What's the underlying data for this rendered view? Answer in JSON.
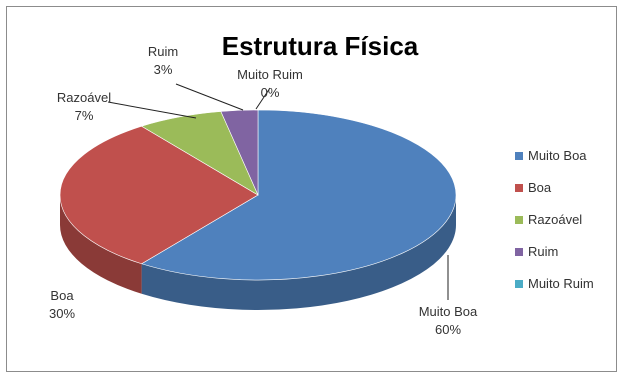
{
  "chart_data": {
    "type": "pie",
    "title": "Estrutura Física",
    "categories": [
      "Muito Boa",
      "Boa",
      "Razoável",
      "Ruim",
      "Muito Ruim"
    ],
    "values": [
      60,
      30,
      7,
      3,
      0
    ],
    "labels": [
      {
        "name": "Muito Boa",
        "pct": "60%"
      },
      {
        "name": "Boa",
        "pct": "30%"
      },
      {
        "name": "Razoável",
        "pct": "7%"
      },
      {
        "name": "Ruim",
        "pct": "3%"
      },
      {
        "name": "Muito Ruim",
        "pct": "0%"
      }
    ],
    "colors": [
      "#4F81BD",
      "#C0504D",
      "#9BBB59",
      "#8064A2",
      "#4BACC6"
    ],
    "legend": {
      "position": "right",
      "items": [
        "Muito Boa",
        "Boa",
        "Razoável",
        "Ruim",
        "Muito Ruim"
      ]
    }
  }
}
